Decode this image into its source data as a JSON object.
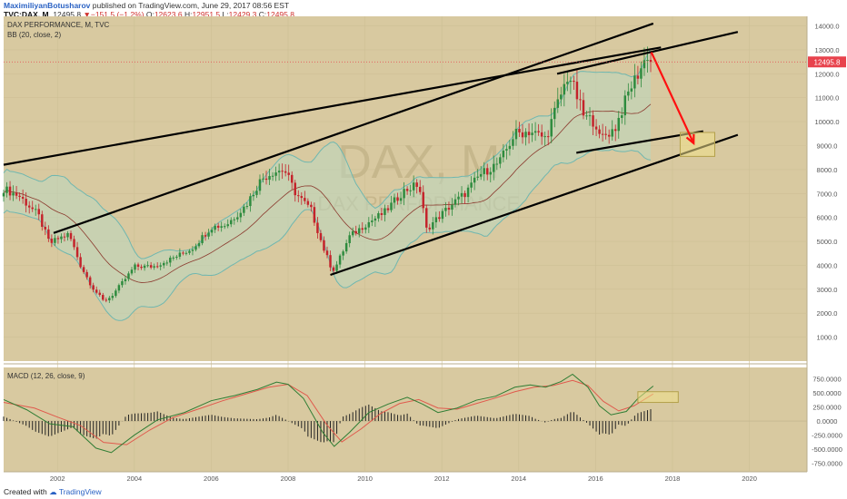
{
  "header": {
    "author": "MaximiliyanBotusharov",
    "published": "published on TradingView.com, June 29, 2017 08:56 EST",
    "symbol": "TVC:DAX, M",
    "last": "12495.8",
    "change_arrow": "▼",
    "change": "−151.5 (−1.2%)",
    "o_label": "O:",
    "o": "12623.6",
    "h_label": "H:",
    "h": "12951.5",
    "l_label": "L:",
    "l": "12429.3",
    "c_label": "C:",
    "c": "12495.8"
  },
  "footer": {
    "created_with": "Created with",
    "brand": "TradingView"
  },
  "colors": {
    "background": "#d8c9a0",
    "band_fill": "#bcd7bf",
    "band_line": "#6fb7b0",
    "basis": "#8b3a2e",
    "up": "#2e8b3e",
    "down": "#c4232b",
    "trend": "#000000",
    "arrow": "#ff1010",
    "macd": "#2f7d34",
    "signal": "#e05a4d",
    "last_price_tag": "#e8434d"
  },
  "chart_data": [
    {
      "type": "candlestick",
      "title": "DAX PERFORMANCE, M, TVC",
      "indicator": "BB (20, close, 2)",
      "watermark_symbol": "DAX, M",
      "watermark_name": "DAX PERFORMANCE",
      "x_ticks": [
        "2002",
        "2004",
        "2006",
        "2008",
        "2010",
        "2012",
        "2014",
        "2016",
        "2018",
        "2020"
      ],
      "y_ticks": [
        {
          "v": 1000,
          "label": "1000.0"
        },
        {
          "v": 2000,
          "label": "2000.0"
        },
        {
          "v": 3000,
          "label": "3000.0"
        },
        {
          "v": 4000,
          "label": "4000.0"
        },
        {
          "v": 5000,
          "label": "5000.0"
        },
        {
          "v": 6000,
          "label": "6000.0"
        },
        {
          "v": 7000,
          "label": "7000.0"
        },
        {
          "v": 8000,
          "label": "8000.0"
        },
        {
          "v": 9000,
          "label": "9000.0"
        },
        {
          "v": 10000,
          "label": "10000.0"
        },
        {
          "v": 11000,
          "label": "11000.0"
        },
        {
          "v": 12000,
          "label": "12000.0"
        },
        {
          "v": 13000,
          "label": "13000.0"
        },
        {
          "v": 14000,
          "label": "14000.0"
        }
      ],
      "ylim": [
        0,
        14400
      ],
      "xlim": [
        2000.6,
        2021.5
      ],
      "last_price": 12495.8,
      "last_price_label": "12495.8",
      "close_path": [
        [
          2000.6,
          7200
        ],
        [
          2001.0,
          6900
        ],
        [
          2001.5,
          6100
        ],
        [
          2001.8,
          4900
        ],
        [
          2002.0,
          5100
        ],
        [
          2002.3,
          5300
        ],
        [
          2002.6,
          4000
        ],
        [
          2002.9,
          3100
        ],
        [
          2003.2,
          2500
        ],
        [
          2003.4,
          2700
        ],
        [
          2003.8,
          3500
        ],
        [
          2004.0,
          3950
        ],
        [
          2004.5,
          3950
        ],
        [
          2005.0,
          4300
        ],
        [
          2005.5,
          4700
        ],
        [
          2006.0,
          5600
        ],
        [
          2006.4,
          5700
        ],
        [
          2006.9,
          6500
        ],
        [
          2007.3,
          7600
        ],
        [
          2007.6,
          7900
        ],
        [
          2007.9,
          8000
        ],
        [
          2008.2,
          7000
        ],
        [
          2008.6,
          6300
        ],
        [
          2008.9,
          4800
        ],
        [
          2009.1,
          4000
        ],
        [
          2009.2,
          3800
        ],
        [
          2009.6,
          5200
        ],
        [
          2010.0,
          5700
        ],
        [
          2010.5,
          6200
        ],
        [
          2011.0,
          7100
        ],
        [
          2011.4,
          7400
        ],
        [
          2011.6,
          5500
        ],
        [
          2011.9,
          6000
        ],
        [
          2012.3,
          6600
        ],
        [
          2012.6,
          7000
        ],
        [
          2013.0,
          7800
        ],
        [
          2013.5,
          8300
        ],
        [
          2013.9,
          9500
        ],
        [
          2014.3,
          9600
        ],
        [
          2014.7,
          9300
        ],
        [
          2015.0,
          10700
        ],
        [
          2015.3,
          12000
        ],
        [
          2015.7,
          10200
        ],
        [
          2016.0,
          10000
        ],
        [
          2016.1,
          9300
        ],
        [
          2016.5,
          9700
        ],
        [
          2016.9,
          11400
        ],
        [
          2017.2,
          12300
        ],
        [
          2017.4,
          12950
        ],
        [
          2017.5,
          12495.8
        ]
      ],
      "trendlines": [
        {
          "from": [
            2000.6,
            8200
          ],
          "to": [
            2017.7,
            13100
          ]
        },
        {
          "from": [
            2001.9,
            5350
          ],
          "to": [
            2017.5,
            14100
          ]
        },
        {
          "from": [
            2015.0,
            12000
          ],
          "to": [
            2019.7,
            13750
          ]
        },
        {
          "from": [
            2009.1,
            3600
          ],
          "to": [
            2019.7,
            9450
          ]
        },
        {
          "from": [
            2015.5,
            8700
          ],
          "to": [
            2018.8,
            9600
          ]
        }
      ],
      "forecast_arrow": {
        "from": [
          2017.45,
          12900
        ],
        "to": [
          2018.55,
          9100
        ]
      },
      "target_box": {
        "x0": 2018.2,
        "x1": 2019.1,
        "y0": 8550,
        "y1": 9550
      }
    },
    {
      "type": "histogram+line",
      "title": "MACD (12, 26, close, 9)",
      "y_ticks": [
        {
          "v": 750,
          "label": "750.0000"
        },
        {
          "v": 500,
          "label": "500.0000"
        },
        {
          "v": 250,
          "label": "250.0000"
        },
        {
          "v": 0,
          "label": "0.0000"
        },
        {
          "v": -250,
          "label": "-250.0000"
        },
        {
          "v": -500,
          "label": "-500.0000"
        },
        {
          "v": -750,
          "label": "-750.0000"
        }
      ],
      "ylim": [
        -900,
        950
      ],
      "macd": [
        [
          2000.6,
          380
        ],
        [
          2001.2,
          200
        ],
        [
          2001.8,
          -50
        ],
        [
          2002.4,
          -100
        ],
        [
          2003.0,
          -480
        ],
        [
          2003.4,
          -560
        ],
        [
          2004.0,
          -250
        ],
        [
          2004.6,
          20
        ],
        [
          2005.3,
          150
        ],
        [
          2006.0,
          360
        ],
        [
          2006.6,
          450
        ],
        [
          2007.2,
          560
        ],
        [
          2007.7,
          690
        ],
        [
          2008.0,
          650
        ],
        [
          2008.4,
          400
        ],
        [
          2008.9,
          -200
        ],
        [
          2009.2,
          -450
        ],
        [
          2009.6,
          -200
        ],
        [
          2010.1,
          150
        ],
        [
          2010.6,
          300
        ],
        [
          2011.1,
          420
        ],
        [
          2011.5,
          300
        ],
        [
          2011.9,
          150
        ],
        [
          2012.4,
          230
        ],
        [
          2012.9,
          370
        ],
        [
          2013.4,
          440
        ],
        [
          2013.9,
          600
        ],
        [
          2014.3,
          640
        ],
        [
          2014.7,
          600
        ],
        [
          2015.1,
          700
        ],
        [
          2015.4,
          830
        ],
        [
          2015.8,
          600
        ],
        [
          2016.1,
          270
        ],
        [
          2016.4,
          110
        ],
        [
          2016.8,
          170
        ],
        [
          2017.1,
          400
        ],
        [
          2017.5,
          620
        ]
      ],
      "signal": [
        [
          2000.6,
          330
        ],
        [
          2001.4,
          230
        ],
        [
          2002.0,
          70
        ],
        [
          2002.6,
          -80
        ],
        [
          2003.2,
          -380
        ],
        [
          2003.8,
          -420
        ],
        [
          2004.4,
          -160
        ],
        [
          2005.0,
          60
        ],
        [
          2005.7,
          220
        ],
        [
          2006.3,
          360
        ],
        [
          2006.9,
          480
        ],
        [
          2007.5,
          600
        ],
        [
          2008.0,
          650
        ],
        [
          2008.5,
          450
        ],
        [
          2009.0,
          -60
        ],
        [
          2009.4,
          -370
        ],
        [
          2009.9,
          -140
        ],
        [
          2010.4,
          130
        ],
        [
          2010.9,
          310
        ],
        [
          2011.4,
          380
        ],
        [
          2011.9,
          230
        ],
        [
          2012.4,
          210
        ],
        [
          2012.9,
          310
        ],
        [
          2013.4,
          410
        ],
        [
          2013.9,
          520
        ],
        [
          2014.4,
          600
        ],
        [
          2014.9,
          630
        ],
        [
          2015.4,
          720
        ],
        [
          2015.8,
          630
        ],
        [
          2016.2,
          350
        ],
        [
          2016.6,
          180
        ],
        [
          2017.0,
          270
        ],
        [
          2017.5,
          480
        ]
      ],
      "box": {
        "x0": 2017.1,
        "x1": 2018.15,
        "y0": 330,
        "y1": 520
      }
    }
  ]
}
